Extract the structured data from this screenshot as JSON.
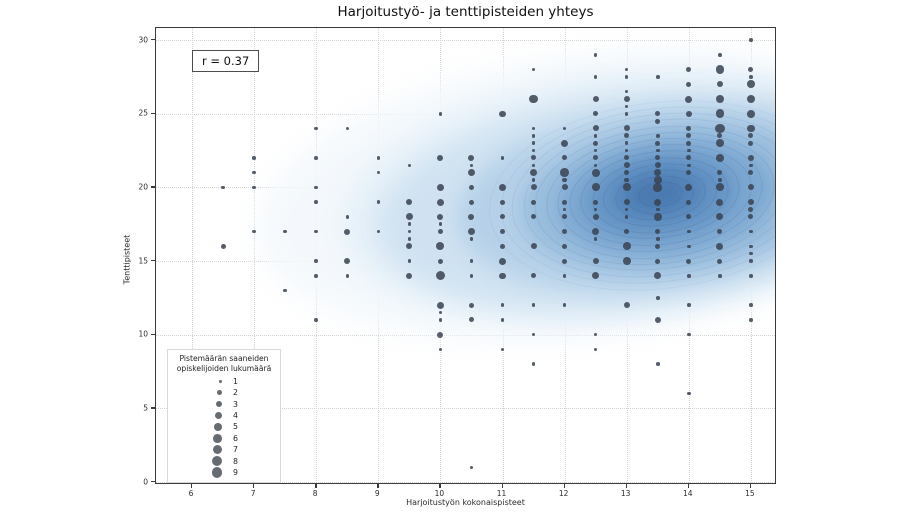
{
  "title": "Harjoitustyö- ja tenttipisteiden yhteys",
  "annotation": {
    "label": "r = 0.37"
  },
  "axes": {
    "x_label": "Harjoitustyön kokonaispisteet",
    "y_label": "Tenttipisteet",
    "x_ticks": [
      6,
      7,
      8,
      9,
      10,
      11,
      12,
      13,
      14,
      15
    ],
    "y_ticks": [
      0,
      5,
      10,
      15,
      20,
      25,
      30
    ]
  },
  "legend": {
    "title_line1": "Pistemäärän saaneiden",
    "title_line2": "opiskelijoiden lukumäärä",
    "sizes": [
      1,
      2,
      3,
      4,
      5,
      6,
      7,
      8,
      9
    ]
  },
  "colors": {
    "dot": "rgba(56,66,80,0.85)",
    "grid": "#d4d4d4",
    "kde_core": "#4a7ab0",
    "kde_mid": "#7aa6d0",
    "kde_light": "#e4eff8",
    "contour_line": "rgba(70,105,155,0.28)"
  },
  "chart_data": {
    "type": "scatter",
    "title": "Harjoitustyö- ja tenttipisteiden yhteys",
    "xlabel": "Harjoitustyön kokonaispisteet",
    "ylabel": "Tenttipisteet",
    "xlim": [
      5.4,
      15.45
    ],
    "ylim": [
      0,
      30.9
    ],
    "grid": true,
    "correlation_r": 0.37,
    "size_legend_counts": [
      1,
      2,
      3,
      4,
      5,
      6,
      7,
      8,
      9
    ],
    "density_overlay": {
      "type": "kde",
      "colormap": "Blues",
      "peak_at": [
        13.5,
        20
      ]
    },
    "points_format": [
      "harjoitustyo_pisteet_x",
      "tenttipisteet_y",
      "opiskelijoiden_lukumaara_n"
    ],
    "points": [
      [
        6.5,
        20,
        1
      ],
      [
        6.5,
        16,
        2
      ],
      [
        7,
        22,
        1
      ],
      [
        7,
        21,
        1
      ],
      [
        7,
        20,
        1
      ],
      [
        7,
        17,
        1
      ],
      [
        7.5,
        17,
        1
      ],
      [
        7.5,
        13,
        1
      ],
      [
        8,
        24,
        1
      ],
      [
        8,
        22,
        1
      ],
      [
        8,
        20,
        1
      ],
      [
        8,
        19,
        1
      ],
      [
        8,
        17,
        1
      ],
      [
        8,
        15,
        1
      ],
      [
        8,
        14,
        1
      ],
      [
        8,
        11,
        1
      ],
      [
        8.5,
        24,
        1
      ],
      [
        8.5,
        18,
        1
      ],
      [
        8.5,
        17,
        3
      ],
      [
        8.5,
        15,
        3
      ],
      [
        8.5,
        14,
        1
      ],
      [
        9,
        22,
        1
      ],
      [
        9,
        21,
        1
      ],
      [
        9,
        19,
        1
      ],
      [
        9,
        17,
        1
      ],
      [
        9.5,
        21.5,
        1
      ],
      [
        9.5,
        19,
        3
      ],
      [
        9.5,
        18,
        4
      ],
      [
        9.5,
        17.5,
        1
      ],
      [
        9.5,
        17,
        1
      ],
      [
        9.5,
        16.5,
        1
      ],
      [
        9.5,
        16,
        3
      ],
      [
        9.5,
        15,
        1
      ],
      [
        9.5,
        14,
        3
      ],
      [
        10,
        25,
        1
      ],
      [
        10,
        22,
        3
      ],
      [
        10,
        20,
        4
      ],
      [
        10,
        19,
        4
      ],
      [
        10,
        18,
        3
      ],
      [
        10,
        17.5,
        1
      ],
      [
        10,
        17,
        2
      ],
      [
        10,
        16,
        5
      ],
      [
        10,
        15,
        2
      ],
      [
        10,
        14,
        7
      ],
      [
        10,
        12,
        4
      ],
      [
        10,
        11.5,
        1
      ],
      [
        10,
        11,
        1
      ],
      [
        10,
        10,
        3
      ],
      [
        10,
        9,
        1
      ],
      [
        10.5,
        22,
        3
      ],
      [
        10.5,
        21.5,
        1
      ],
      [
        10.5,
        21,
        4
      ],
      [
        10.5,
        20,
        2
      ],
      [
        10.5,
        19,
        2
      ],
      [
        10.5,
        18,
        3
      ],
      [
        10.5,
        17,
        4
      ],
      [
        10.5,
        16.5,
        1
      ],
      [
        10.5,
        15,
        1
      ],
      [
        10.5,
        14,
        1
      ],
      [
        10.5,
        12,
        2
      ],
      [
        10.5,
        11,
        2
      ],
      [
        10.5,
        1,
        1
      ],
      [
        11,
        25,
        3
      ],
      [
        11,
        22,
        1
      ],
      [
        11,
        20,
        4
      ],
      [
        11,
        19,
        2
      ],
      [
        11,
        18,
        2
      ],
      [
        11,
        17,
        2
      ],
      [
        11,
        16,
        2
      ],
      [
        11,
        15,
        4
      ],
      [
        11,
        14,
        3
      ],
      [
        11,
        12,
        1
      ],
      [
        11,
        11,
        1
      ],
      [
        11,
        9,
        1
      ],
      [
        11.5,
        28,
        1
      ],
      [
        11.5,
        26,
        6
      ],
      [
        11.5,
        24,
        1
      ],
      [
        11.5,
        23.5,
        1
      ],
      [
        11.5,
        23,
        1
      ],
      [
        11.5,
        22.5,
        1
      ],
      [
        11.5,
        22,
        2
      ],
      [
        11.5,
        21.5,
        1
      ],
      [
        11.5,
        21,
        4
      ],
      [
        11.5,
        20.5,
        1
      ],
      [
        11.5,
        20,
        3
      ],
      [
        11.5,
        19,
        2
      ],
      [
        11.5,
        18,
        2
      ],
      [
        11.5,
        16,
        3
      ],
      [
        11.5,
        14,
        2
      ],
      [
        11.5,
        12,
        1
      ],
      [
        11.5,
        10,
        1
      ],
      [
        11.5,
        8,
        1
      ],
      [
        12,
        24,
        1
      ],
      [
        12,
        23,
        4
      ],
      [
        12,
        22,
        2
      ],
      [
        12,
        21,
        6
      ],
      [
        12,
        20.5,
        2
      ],
      [
        12,
        20,
        3
      ],
      [
        12,
        19,
        2
      ],
      [
        12,
        18.5,
        1
      ],
      [
        12,
        18,
        2
      ],
      [
        12,
        17,
        2
      ],
      [
        12,
        16,
        2
      ],
      [
        12,
        15,
        2
      ],
      [
        12,
        14,
        1
      ],
      [
        12,
        12,
        1
      ],
      [
        12.5,
        29,
        1
      ],
      [
        12.5,
        27.5,
        1
      ],
      [
        12.5,
        26,
        3
      ],
      [
        12.5,
        25,
        2
      ],
      [
        12.5,
        24,
        3
      ],
      [
        12.5,
        23.5,
        1
      ],
      [
        12.5,
        23,
        2
      ],
      [
        12.5,
        22.5,
        1
      ],
      [
        12.5,
        22,
        2
      ],
      [
        12.5,
        21.5,
        1
      ],
      [
        12.5,
        21,
        5
      ],
      [
        12.5,
        20,
        5
      ],
      [
        12.5,
        19,
        2
      ],
      [
        12.5,
        18.5,
        1
      ],
      [
        12.5,
        18,
        3
      ],
      [
        12.5,
        17,
        4
      ],
      [
        12.5,
        16.5,
        1
      ],
      [
        12.5,
        15,
        3
      ],
      [
        12.5,
        14,
        4
      ],
      [
        12.5,
        10,
        1
      ],
      [
        12.5,
        9,
        1
      ],
      [
        13,
        28,
        1
      ],
      [
        13,
        27.5,
        1
      ],
      [
        13,
        26.5,
        1
      ],
      [
        13,
        26,
        3
      ],
      [
        13,
        25.5,
        1
      ],
      [
        13,
        25,
        1
      ],
      [
        13,
        24,
        3
      ],
      [
        13,
        23.5,
        2
      ],
      [
        13,
        23,
        1
      ],
      [
        13,
        22.5,
        1
      ],
      [
        13,
        22,
        2
      ],
      [
        13,
        21.5,
        3
      ],
      [
        13,
        21,
        2
      ],
      [
        13,
        20.5,
        2
      ],
      [
        13,
        20,
        5
      ],
      [
        13,
        19,
        3
      ],
      [
        13,
        18.5,
        1
      ],
      [
        13,
        18,
        1
      ],
      [
        13,
        17,
        2
      ],
      [
        13,
        16,
        5
      ],
      [
        13,
        15,
        5
      ],
      [
        13,
        12,
        3
      ],
      [
        13.5,
        27.5,
        1
      ],
      [
        13.5,
        25,
        2
      ],
      [
        13.5,
        24.5,
        2
      ],
      [
        13.5,
        23.5,
        1
      ],
      [
        13.5,
        23,
        2
      ],
      [
        13.5,
        22.5,
        1
      ],
      [
        13.5,
        22,
        2
      ],
      [
        13.5,
        21.5,
        3
      ],
      [
        13.5,
        21,
        4
      ],
      [
        13.5,
        20.5,
        5
      ],
      [
        13.5,
        20,
        6
      ],
      [
        13.5,
        19,
        4
      ],
      [
        13.5,
        18.5,
        1
      ],
      [
        13.5,
        18,
        5
      ],
      [
        13.5,
        17,
        2
      ],
      [
        13.5,
        16.5,
        1
      ],
      [
        13.5,
        16,
        2
      ],
      [
        13.5,
        15,
        2
      ],
      [
        13.5,
        14,
        4
      ],
      [
        13.5,
        12.5,
        1
      ],
      [
        13.5,
        11,
        3
      ],
      [
        13.5,
        8,
        1
      ],
      [
        14,
        28,
        2
      ],
      [
        14,
        27,
        2
      ],
      [
        14,
        26,
        4
      ],
      [
        14,
        25,
        3
      ],
      [
        14,
        24,
        2
      ],
      [
        14,
        23.5,
        2
      ],
      [
        14,
        23,
        2
      ],
      [
        14,
        22.5,
        1
      ],
      [
        14,
        22,
        2
      ],
      [
        14,
        21.5,
        1
      ],
      [
        14,
        21,
        2
      ],
      [
        14,
        20,
        4
      ],
      [
        14,
        19,
        2
      ],
      [
        14,
        18,
        2
      ],
      [
        14,
        17,
        1
      ],
      [
        14,
        16,
        1
      ],
      [
        14,
        15,
        2
      ],
      [
        14,
        14,
        1
      ],
      [
        14,
        12,
        1
      ],
      [
        14,
        10,
        1
      ],
      [
        14,
        6,
        1
      ],
      [
        14.5,
        29,
        1
      ],
      [
        14.5,
        28,
        6
      ],
      [
        14.5,
        27,
        3
      ],
      [
        14.5,
        26,
        6
      ],
      [
        14.5,
        25,
        6
      ],
      [
        14.5,
        24,
        8
      ],
      [
        14.5,
        23.5,
        2
      ],
      [
        14.5,
        23,
        5
      ],
      [
        14.5,
        22,
        5
      ],
      [
        14.5,
        21,
        2
      ],
      [
        14.5,
        20.5,
        1
      ],
      [
        14.5,
        20,
        5
      ],
      [
        14.5,
        19,
        4
      ],
      [
        14.5,
        18,
        4
      ],
      [
        14.5,
        17,
        2
      ],
      [
        14.5,
        16,
        4
      ],
      [
        14.5,
        15,
        2
      ],
      [
        14.5,
        14,
        1
      ],
      [
        15,
        30,
        1
      ],
      [
        15,
        28,
        2
      ],
      [
        15,
        27.5,
        1
      ],
      [
        15,
        27,
        5
      ],
      [
        15,
        26,
        6
      ],
      [
        15,
        25,
        5
      ],
      [
        15,
        24,
        5
      ],
      [
        15,
        23.5,
        2
      ],
      [
        15,
        23,
        2
      ],
      [
        15,
        22,
        3
      ],
      [
        15,
        21.5,
        1
      ],
      [
        15,
        21,
        2
      ],
      [
        15,
        20,
        3
      ],
      [
        15,
        19,
        3
      ],
      [
        15,
        18.5,
        2
      ],
      [
        15,
        18,
        2
      ],
      [
        15,
        17,
        1
      ],
      [
        15,
        16,
        1
      ],
      [
        15,
        15.5,
        1
      ],
      [
        15,
        15,
        1
      ],
      [
        15,
        14,
        1
      ],
      [
        15,
        12,
        1
      ],
      [
        15,
        11,
        1
      ]
    ]
  }
}
